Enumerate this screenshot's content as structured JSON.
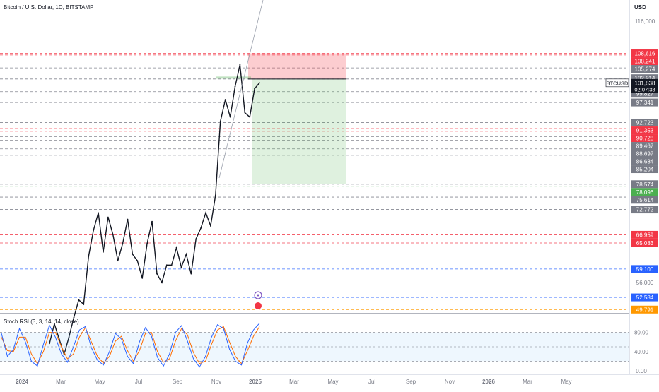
{
  "header": {
    "title": "Bitcoin / U.S. Dollar, 1D, BITSTAMP",
    "currency": "USD"
  },
  "stoch": {
    "label": "Stoch RSI (3, 3, 14, 14, close)",
    "ticks": [
      "80.00",
      "40.00",
      "0.00"
    ]
  },
  "chart_data": {
    "type": "line",
    "title": "Bitcoin / U.S. Dollar, 1D, BITSTAMP",
    "xlabel": "",
    "ylabel": "USD",
    "x_ticks": [
      "2024",
      "Mar",
      "May",
      "Jul",
      "Sep",
      "Nov",
      "2025",
      "Mar",
      "May",
      "Jul",
      "Sep",
      "Nov",
      "2026",
      "Mar",
      "May"
    ],
    "y_ticks": [
      "116,000",
      "56,000"
    ],
    "grid": false,
    "price_line": {
      "symbol": "BTCUSD",
      "value": "101,838",
      "countdown": "02:07:38"
    },
    "levels": [
      {
        "label": "108,616",
        "value": 108616,
        "kind": "red"
      },
      {
        "label": "108,241",
        "value": 108241,
        "kind": "red"
      },
      {
        "label": "105,274",
        "value": 105274,
        "kind": "gray"
      },
      {
        "label": "102,914",
        "value": 102914,
        "kind": "gray"
      },
      {
        "label": "102,728",
        "value": 102728,
        "kind": "gray"
      },
      {
        "label": "99,827",
        "value": 99827,
        "kind": "gray"
      },
      {
        "label": "97,341",
        "value": 97341,
        "kind": "gray"
      },
      {
        "label": "92,723",
        "value": 92723,
        "kind": "gray"
      },
      {
        "label": "91,353",
        "value": 91353,
        "kind": "red"
      },
      {
        "label": "90,728",
        "value": 90728,
        "kind": "red"
      },
      {
        "label": "89,467",
        "value": 89467,
        "kind": "gray"
      },
      {
        "label": "88,697",
        "value": 88697,
        "kind": "gray"
      },
      {
        "label": "86,684",
        "value": 86684,
        "kind": "gray"
      },
      {
        "label": "85,204",
        "value": 85204,
        "kind": "gray"
      },
      {
        "label": "78,574",
        "value": 78574,
        "kind": "gray"
      },
      {
        "label": "78,096",
        "value": 78096,
        "kind": "green"
      },
      {
        "label": "75,614",
        "value": 75614,
        "kind": "gray"
      },
      {
        "label": "72,772",
        "value": 72772,
        "kind": "gray"
      },
      {
        "label": "66,959",
        "value": 66959,
        "kind": "red"
      },
      {
        "label": "65,083",
        "value": 65083,
        "kind": "red"
      },
      {
        "label": "59,100",
        "value": 59100,
        "kind": "blue"
      },
      {
        "label": "52,584",
        "value": 52584,
        "kind": "blue"
      },
      {
        "label": "49,791",
        "value": 49791,
        "kind": "orange"
      }
    ],
    "series": [
      {
        "values": [
          42000,
          46500,
          43000,
          39500,
          43500,
          48000,
          52000,
          51000,
          62000,
          68000,
          72000,
          63000,
          71000,
          67000,
          61000,
          65000,
          70500,
          62500,
          61000,
          57000,
          65000,
          70000,
          58000,
          56000,
          60000,
          60000,
          64000,
          59500,
          62500,
          58000,
          66000,
          68500,
          72000,
          69000,
          76000,
          93000,
          98000,
          94000,
          101000,
          106000,
          95000,
          94000,
          100500,
          101838
        ]
      }
    ],
    "trade_zones": {
      "stop_top": 108616,
      "entry": 102728,
      "target": 78574
    },
    "colors": {
      "red": "#f23645",
      "gray": "#787b86",
      "green": "#4caf50",
      "blue": "#2962ff",
      "orange": "#ff9800",
      "black": "#131722",
      "stoch_k": "#2962ff",
      "stoch_d": "#ff6d00"
    },
    "stoch_values": {
      "k": [
        78,
        30,
        45,
        88,
        60,
        20,
        10,
        55,
        95,
        70,
        35,
        18,
        50,
        85,
        92,
        48,
        22,
        12,
        40,
        78,
        66,
        30,
        15,
        60,
        90,
        72,
        28,
        10,
        35,
        80,
        94,
        62,
        25,
        8,
        30,
        70,
        96,
        88,
        45,
        20,
        12,
        58,
        85,
        99
      ],
      "d": [
        70,
        42,
        40,
        70,
        70,
        35,
        15,
        40,
        80,
        80,
        50,
        25,
        35,
        70,
        90,
        60,
        30,
        16,
        30,
        62,
        72,
        42,
        20,
        42,
        78,
        80,
        40,
        18,
        25,
        62,
        88,
        75,
        38,
        15,
        20,
        55,
        85,
        92,
        60,
        30,
        15,
        42,
        72,
        92
      ]
    }
  }
}
